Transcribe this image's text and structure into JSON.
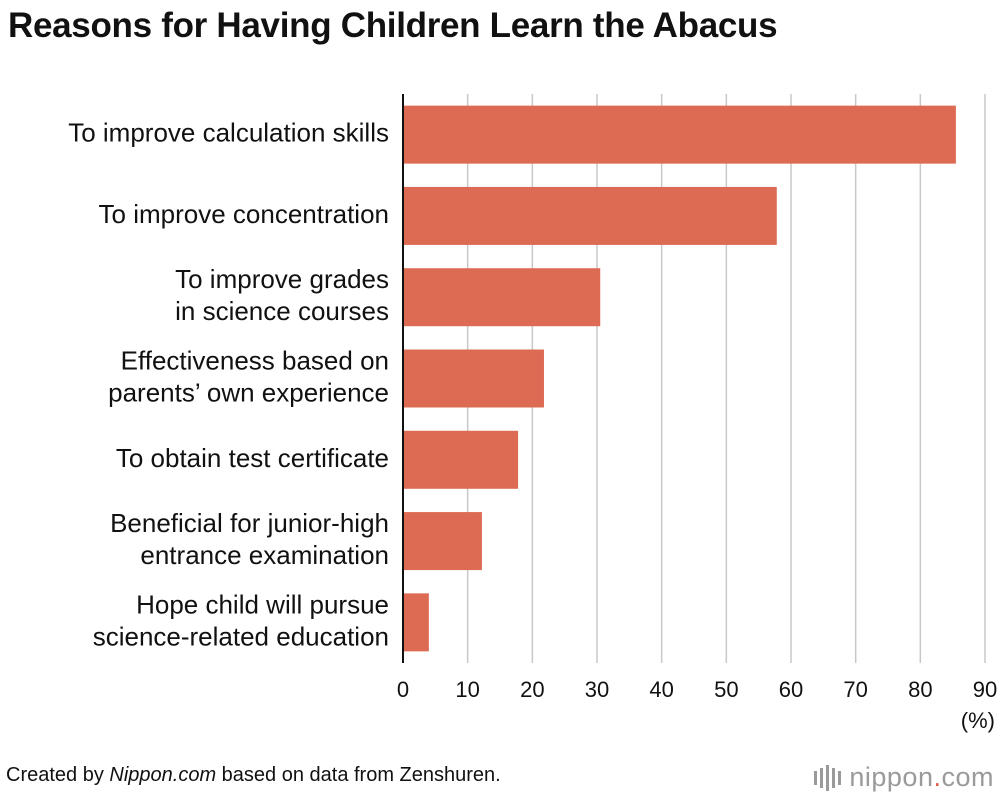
{
  "title": "Reasons for Having Children Learn the Abacus",
  "source": {
    "prefix": "Created by ",
    "brand": "Nippon.com",
    "suffix": " based on data from Zenshuren."
  },
  "logo": {
    "left": "nippon",
    "dot": ".",
    "right": "com"
  },
  "chart_data": {
    "type": "bar",
    "orientation": "horizontal",
    "title": "Reasons for Having Children Learn the Abacus",
    "categories": [
      [
        "To improve calculation skills"
      ],
      [
        "To improve concentration"
      ],
      [
        "To improve grades",
        "in science courses"
      ],
      [
        "Effectiveness based on",
        "parents’ own experience"
      ],
      [
        "To obtain test certificate"
      ],
      [
        "Beneficial for junior-high",
        "entrance examination"
      ],
      [
        "Hope child will pursue",
        "science-related education"
      ]
    ],
    "values": [
      85.5,
      57.8,
      30.5,
      21.8,
      17.8,
      12.2,
      4.0
    ],
    "xlim": [
      0,
      90
    ],
    "xticks": [
      0,
      10,
      20,
      30,
      40,
      50,
      60,
      70,
      80,
      90
    ],
    "unit_label": "(%)",
    "grid": true,
    "bar_color": "#dd6b53",
    "grid_color": "#c8c8c8"
  }
}
